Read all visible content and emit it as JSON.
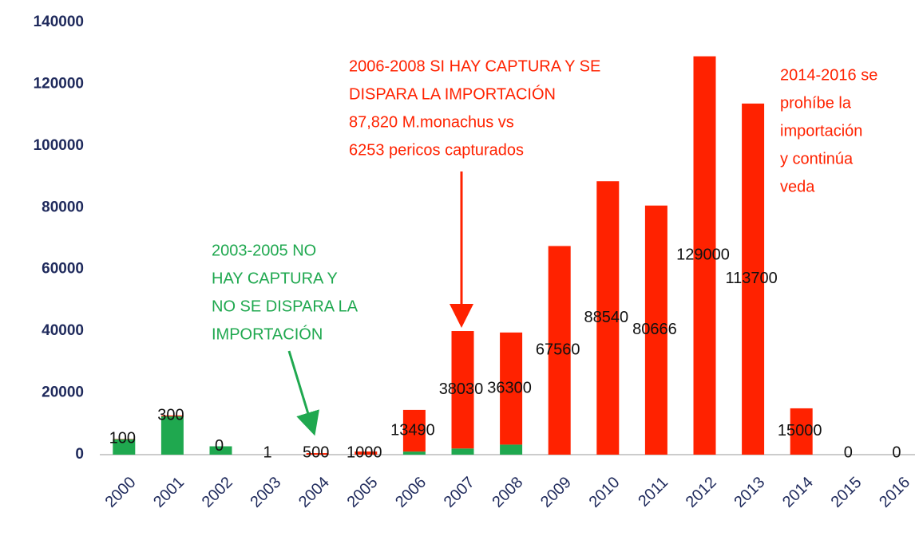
{
  "chart_data": {
    "type": "stacked_bar",
    "categories": [
      "2000",
      "2001",
      "2002",
      "2003",
      "2004",
      "2005",
      "2006",
      "2007",
      "2008",
      "2009",
      "2010",
      "2011",
      "2012",
      "2013",
      "2014",
      "2015",
      "2016"
    ],
    "series": [
      {
        "color": "#1fa84f",
        "values": [
          5000,
          12400,
          2700,
          0,
          0,
          0,
          1000,
          2000,
          3253,
          0,
          0,
          0,
          0,
          0,
          0,
          0,
          0
        ]
      },
      {
        "color": "#ff2200",
        "values": [
          100,
          300,
          0,
          1,
          500,
          1000,
          13490,
          38030,
          36300,
          67560,
          88540,
          80666,
          129000,
          113700,
          15000,
          0,
          0
        ],
        "labeled": true
      }
    ],
    "ylim": [
      0,
      140000
    ],
    "yticks": [
      0,
      20000,
      40000,
      60000,
      80000,
      100000,
      120000,
      140000
    ],
    "annotations": [
      {
        "color": "#ff2200",
        "lines": [
          "2006-2008 SI HAY CAPTURA Y SE",
          "DISPARA LA IMPORTACIÓN",
          "87,820 M.monachus vs",
          "6253 pericos capturados"
        ]
      },
      {
        "color": "#ff2200",
        "lines": [
          "2014-2016 se",
          "prohíbe la",
          "importación",
          "y continúa",
          "veda"
        ]
      },
      {
        "color": "#1fa84f",
        "lines": [
          "2003-2005 NO",
          "HAY CAPTURA Y",
          "NO SE DISPARA LA",
          "IMPORTACIÓN"
        ]
      }
    ]
  }
}
